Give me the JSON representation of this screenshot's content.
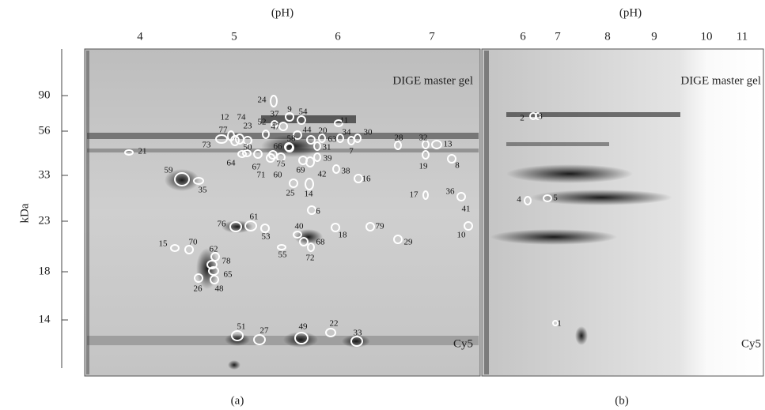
{
  "figure": {
    "panels": [
      {
        "label": "(a)",
        "ph_label": "(pH)",
        "ph_ticks": [
          "4",
          "5",
          "6",
          "7"
        ],
        "kda_label": "kDa",
        "kda_ticks": [
          "90",
          "56",
          "33",
          "23",
          "18",
          "14"
        ],
        "gel_label": "DIGE master gel",
        "dye_label": "Cy5",
        "spots": [
          "24",
          "9",
          "54",
          "37",
          "11",
          "12",
          "74",
          "52",
          "47",
          "44",
          "20",
          "34",
          "30",
          "23",
          "77",
          "58",
          "63",
          "28",
          "32",
          "13",
          "73",
          "66",
          "31",
          "7",
          "21",
          "50",
          "64",
          "67",
          "39",
          "8",
          "19",
          "71",
          "60",
          "75",
          "69",
          "42",
          "38",
          "59",
          "35",
          "16",
          "25",
          "14",
          "17",
          "36",
          "41",
          "6",
          "76",
          "61",
          "53",
          "40",
          "18",
          "79",
          "10",
          "68",
          "29",
          "15",
          "70",
          "55",
          "72",
          "62",
          "78",
          "65",
          "26",
          "48",
          "51",
          "27",
          "49",
          "22",
          "33"
        ]
      },
      {
        "label": "(b)",
        "ph_label": "(pH)",
        "ph_ticks": [
          "6",
          "7",
          "8",
          "9",
          "10",
          "11"
        ],
        "gel_label": "DIGE master gel",
        "dye_label": "Cy5",
        "spots": [
          "2",
          "3",
          "4",
          "5",
          "1"
        ]
      }
    ]
  }
}
